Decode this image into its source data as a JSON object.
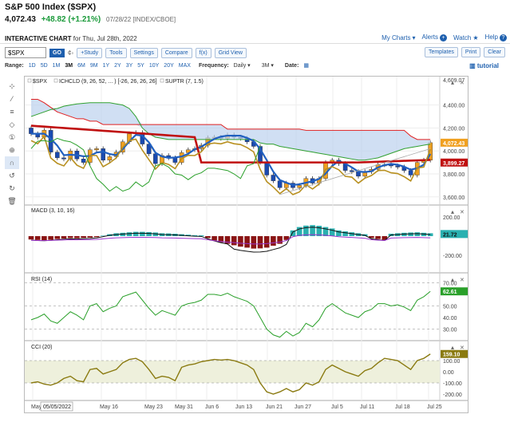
{
  "header": {
    "title": "S&P 500 Index ($SPX)",
    "last": "4,072.43",
    "change": "+48.82 (+1.21%)",
    "meta": "07/28/22 [INDEX/CBOE]",
    "interactive_label": "INTERACTIVE CHART",
    "interactive_date": "for Thu, Jul 28th, 2022"
  },
  "toplinks": {
    "mycharts": "My Charts",
    "alerts": "Alerts",
    "watch": "Watch",
    "help": "Help"
  },
  "toolbar": {
    "symbol": "$SPX",
    "go": "GO",
    "study": "+Study",
    "tools": "Tools",
    "settings": "Settings",
    "compare": "Compare",
    "fx": "f(x)",
    "gridview": "Grid View",
    "templates": "Templates",
    "print": "Print",
    "clear": "Clear"
  },
  "range": {
    "label": "Range:",
    "options": [
      "1D",
      "5D",
      "1M",
      "3M",
      "6M",
      "9M",
      "1Y",
      "2Y",
      "3Y",
      "5Y",
      "10Y",
      "20Y",
      "MAX"
    ],
    "selected": "3M",
    "frequency_label": "Frequency:",
    "frequency": "Daily",
    "period": "3M",
    "date_label": "Date:",
    "tutorial": "tutorial"
  },
  "price_panel": {
    "legend": [
      "$SPX",
      "ICHCLD (9, 26, 52, ... ) [-26, 26, 26, 26]",
      "SUPTR (7, 1.5)"
    ],
    "y_ticks": [
      "4,609.07",
      "4,400.00",
      "4,200.00",
      "4,000.00",
      "3,800.00",
      "3,600.00"
    ],
    "last_tag": "4,072.43",
    "st_tag": "3,899.27"
  },
  "macd_panel": {
    "legend": "MACD (3, 10, 16)",
    "y_ticks": [
      "200.00",
      "-200.00"
    ],
    "tag": "21.72"
  },
  "rsi_panel": {
    "legend": "RSI (14)",
    "y_ticks": [
      "70.00",
      "50.00",
      "40.00",
      "30.00"
    ],
    "tag": "62.61"
  },
  "cci_panel": {
    "legend": "CCI (20)",
    "y_ticks": [
      "100.00",
      "0.00",
      "-100.00",
      "-200.00"
    ],
    "tag": "159.10"
  },
  "x_axis": {
    "labels": [
      "May",
      "May 16",
      "May 23",
      "May 31",
      "Jun 6",
      "Jun 13",
      "Jun 21",
      "Jun 27",
      "Jul 5",
      "Jul 11",
      "Jul 18",
      "Jul 25"
    ],
    "cursor_label": "05/05/2022"
  },
  "colors": {
    "up": "#f0a020",
    "down": "#1a4ab0",
    "cloud": "#bcd2ee",
    "macd_up": "#2ab0b0",
    "macd_down": "#8a1414"
  }
}
